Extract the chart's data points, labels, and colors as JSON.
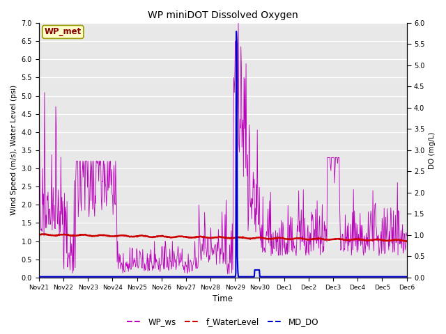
{
  "title": "WP miniDOT Dissolved Oxygen",
  "xlabel": "Time",
  "ylabel_left": "Wind Speed (m/s), Water Level (psi)",
  "ylabel_right": "DO (mg/L)",
  "annotation": "WP_met",
  "ylim_left": [
    0.0,
    7.0
  ],
  "ylim_right": [
    0.0,
    6.0
  ],
  "yticks_left": [
    0.0,
    0.5,
    1.0,
    1.5,
    2.0,
    2.5,
    3.0,
    3.5,
    4.0,
    4.5,
    5.0,
    5.5,
    6.0,
    6.5,
    7.0
  ],
  "yticks_right": [
    0.0,
    0.5,
    1.0,
    1.5,
    2.0,
    2.5,
    3.0,
    3.5,
    4.0,
    4.5,
    5.0,
    5.5,
    6.0
  ],
  "xtick_labels": [
    "Nov 21",
    "Nov 22",
    "Nov 23",
    "Nov 24",
    "Nov 25",
    "Nov 26",
    "Nov 27",
    "Nov 28",
    "Nov 29",
    "Nov 30",
    "Dec 1",
    "Dec 2",
    "Dec 3",
    "Dec 4",
    "Dec 5",
    "Dec 6"
  ],
  "color_ws": "#bb00bb",
  "color_wl": "#cc0000",
  "color_do": "#0000cc",
  "bg_color": "#e8e8e8",
  "legend_entries": [
    "WP_ws",
    "f_WaterLevel",
    "MD_DO"
  ],
  "annotation_bg": "#ffffcc",
  "annotation_border": "#999900",
  "annotation_text_color": "#880000",
  "figsize": [
    6.4,
    4.8
  ],
  "dpi": 100
}
